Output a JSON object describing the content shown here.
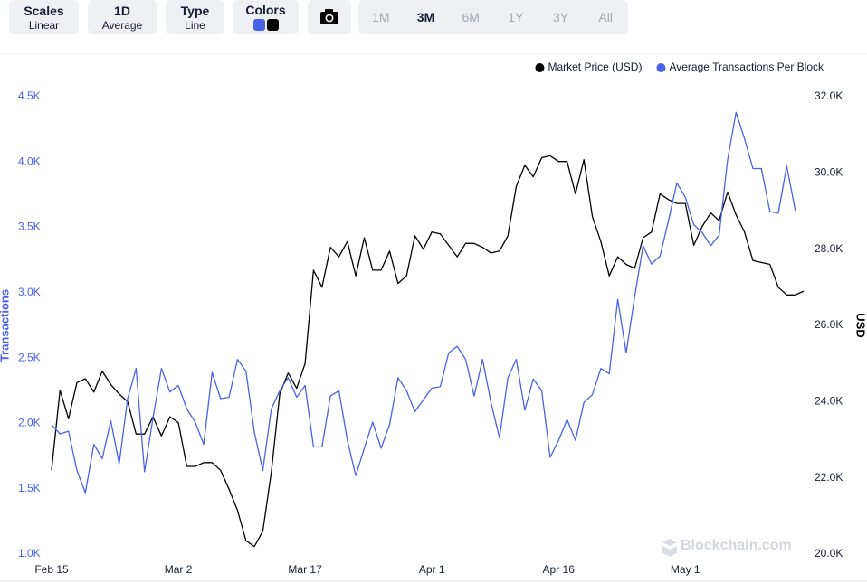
{
  "toolbar": {
    "buttons": [
      {
        "label": "Scales",
        "value": "Linear"
      },
      {
        "label": "1D",
        "value": "Average"
      },
      {
        "label": "Type",
        "value": "Line"
      }
    ],
    "colors_label": "Colors",
    "ranges": [
      "1M",
      "3M",
      "6M",
      "1Y",
      "3Y",
      "All"
    ],
    "active_range": 1
  },
  "watermark": "Blockchain.com",
  "chart_data": {
    "type": "line",
    "y_label": "Transactions",
    "y2_label": "USD",
    "categories": [
      "Feb 15",
      null,
      null,
      null,
      null,
      null,
      null,
      null,
      null,
      null,
      null,
      null,
      null,
      null,
      null,
      "Mar 2",
      null,
      null,
      null,
      null,
      null,
      null,
      null,
      null,
      null,
      null,
      null,
      null,
      null,
      null,
      "Mar 17",
      null,
      null,
      null,
      null,
      null,
      null,
      null,
      null,
      null,
      null,
      null,
      null,
      null,
      null,
      "Apr 1",
      null,
      null,
      null,
      null,
      null,
      null,
      null,
      null,
      null,
      null,
      null,
      null,
      null,
      null,
      "Apr 16",
      null,
      null,
      null,
      null,
      null,
      null,
      null,
      null,
      null,
      null,
      null,
      null,
      null,
      null,
      "May 1",
      null,
      null,
      null,
      null,
      null,
      null,
      null,
      null,
      null,
      null,
      null,
      null,
      null,
      null
    ],
    "series": [
      {
        "name": "Market Price (USD)",
        "color": "#000000",
        "axis": "y2",
        "values": [
          22200,
          24300,
          23550,
          24500,
          24600,
          24250,
          24800,
          24450,
          24200,
          24000,
          23150,
          23150,
          23600,
          23100,
          23600,
          23450,
          22300,
          22300,
          22400,
          22400,
          22200,
          21700,
          21150,
          20350,
          20200,
          20600,
          22150,
          24200,
          24750,
          24350,
          25000,
          27450,
          27000,
          28050,
          27800,
          28200,
          27300,
          28300,
          27450,
          27450,
          27950,
          27100,
          27300,
          28350,
          28000,
          28450,
          28400,
          28100,
          27800,
          28150,
          28150,
          28050,
          27900,
          27950,
          28350,
          29650,
          30200,
          29900,
          30400,
          30450,
          30300,
          30300,
          29450,
          30350,
          28850,
          28200,
          27300,
          27800,
          27600,
          27500,
          28300,
          28450,
          29450,
          29300,
          29200,
          29200,
          28100,
          28600,
          28950,
          28750,
          29500,
          28900,
          28450,
          27700,
          27650,
          27600,
          27000,
          26800,
          26800,
          26900
        ]
      },
      {
        "name": "Average Transactions Per Block",
        "color": "#4a62e8",
        "values": [
          1990,
          1920,
          1940,
          1640,
          1470,
          1840,
          1730,
          2020,
          1690,
          2190,
          2420,
          1630,
          2040,
          2420,
          2240,
          2290,
          2110,
          2010,
          1840,
          2390,
          2190,
          2200,
          2490,
          2400,
          1930,
          1640,
          2110,
          2250,
          2350,
          2200,
          2290,
          1820,
          1820,
          2210,
          2250,
          1870,
          1600,
          1810,
          2010,
          1810,
          1990,
          2350,
          2250,
          2090,
          2180,
          2270,
          2280,
          2540,
          2590,
          2490,
          2210,
          2490,
          2160,
          1890,
          2350,
          2490,
          2100,
          2340,
          2250,
          1740,
          1870,
          2030,
          1870,
          2160,
          2220,
          2420,
          2380,
          2950,
          2540,
          2970,
          3360,
          3220,
          3280,
          3550,
          3840,
          3730,
          3520,
          3460,
          3360,
          3440,
          4020,
          4380,
          4180,
          3950,
          3950,
          3620,
          3610,
          3970,
          3630,
          null
        ]
      }
    ],
    "ylim": [
      1000,
      4500
    ],
    "yticks": [
      {
        "value": 1000,
        "label": "1.0K"
      },
      {
        "value": 1500,
        "label": "1.5K"
      },
      {
        "value": 2000,
        "label": "2.0K"
      },
      {
        "value": 2500,
        "label": "2.5K"
      },
      {
        "value": 3000,
        "label": "3.0K"
      },
      {
        "value": 3500,
        "label": "3.5K"
      },
      {
        "value": 4000,
        "label": "4.0K"
      },
      {
        "value": 4500,
        "label": "4.5K"
      }
    ],
    "y2lim": [
      20000,
      32000
    ],
    "y2ticks": [
      {
        "value": 20000,
        "label": "20.0K"
      },
      {
        "value": 22000,
        "label": "22.0K"
      },
      {
        "value": 24000,
        "label": "24.0K"
      },
      {
        "value": 26000,
        "label": "26.0K"
      },
      {
        "value": 28000,
        "label": "28.0K"
      },
      {
        "value": 30000,
        "label": "30.0K"
      },
      {
        "value": 32000,
        "label": "32.0K"
      }
    ],
    "y_color": "#4a62e8",
    "legend": "top-right"
  }
}
